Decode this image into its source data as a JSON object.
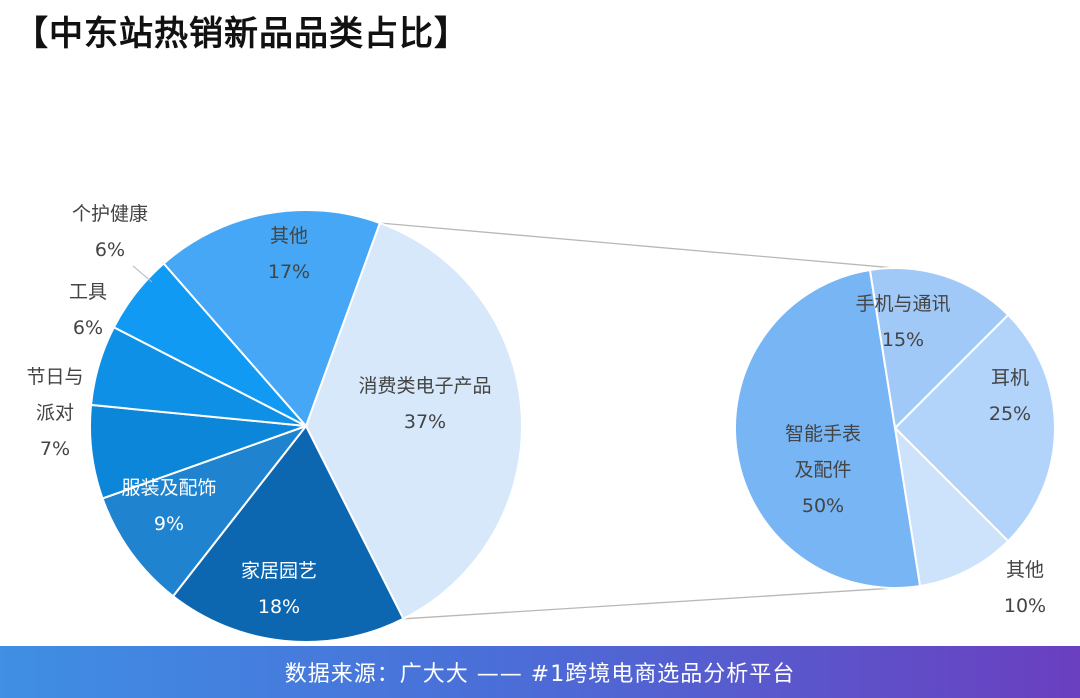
{
  "title": "【中东站热销新品品类占比】",
  "footer": {
    "source_text": "数据来源：广大大 —— #1跨境电商选品分析平台"
  },
  "chart_data": {
    "type": "pie",
    "subtype": "pie-of-pie",
    "main_pie": {
      "slices": [
        {
          "label": "消费类电子产品",
          "value": 37,
          "value_text": "37%",
          "color": "#d7e8fb"
        },
        {
          "label": "家居园艺",
          "value": 18,
          "value_text": "18%",
          "color": "#0d66b0"
        },
        {
          "label": "服装及配饰",
          "value": 9,
          "value_text": "9%",
          "color": "#1f83cf"
        },
        {
          "label": "节日与派对",
          "value": 7,
          "value_text": "7%",
          "color": "#0b86d9"
        },
        {
          "label": "工具",
          "value": 6,
          "value_text": "6%",
          "color": "#0e90e6"
        },
        {
          "label": "个护健康",
          "value": 6,
          "value_text": "6%",
          "color": "#109af3"
        },
        {
          "label": "其他",
          "value": 17,
          "value_text": "17%",
          "color": "#45a7f5"
        }
      ]
    },
    "secondary_pie": {
      "parent": "消费类电子产品",
      "slices": [
        {
          "label": "耳机",
          "value": 25,
          "value_text": "25%",
          "color": "#b2d4fb"
        },
        {
          "label": "其他",
          "value": 10,
          "value_text": "10%",
          "color": "#cce3fb"
        },
        {
          "label": "智能手表及配件",
          "value": 50,
          "value_text": "50%",
          "color": "#78b5f4"
        },
        {
          "label": "手机与通讯",
          "value": 15,
          "value_text": "15%",
          "color": "#a1c9f7"
        }
      ]
    },
    "legend": "none"
  }
}
